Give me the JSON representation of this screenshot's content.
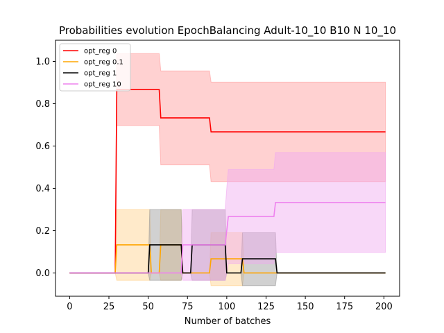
{
  "chart_data": {
    "type": "line",
    "title": "Probabilities evolution EpochBalancing Adult-10_10 B10 N 10_10",
    "xlabel": "Number of batches",
    "ylabel": "",
    "xlim": [
      -9,
      210
    ],
    "ylim": [
      -0.11,
      1.1
    ],
    "xticks": [
      0,
      25,
      50,
      75,
      100,
      125,
      150,
      175,
      200
    ],
    "yticks": [
      0.0,
      0.2,
      0.4,
      0.6,
      0.8,
      1.0
    ],
    "ytick_labels": [
      "0.0",
      "0.2",
      "0.4",
      "0.6",
      "0.8",
      "1.0"
    ],
    "grid": false,
    "legend_position": "top-left",
    "series": [
      {
        "name": "opt_reg 0",
        "color": "#ff0000",
        "band_color": "#ff9999",
        "points": [
          [
            0,
            0.0
          ],
          [
            29,
            0.0
          ],
          [
            30,
            0.867
          ],
          [
            57,
            0.867
          ],
          [
            58,
            0.733
          ],
          [
            89,
            0.733
          ],
          [
            90,
            0.667
          ],
          [
            201,
            0.667
          ]
        ],
        "band": [
          [
            0,
            0,
            0
          ],
          [
            29,
            0,
            0
          ],
          [
            30,
            0.697,
            1.037
          ],
          [
            57,
            0.697,
            1.037
          ],
          [
            58,
            0.511,
            0.955
          ],
          [
            89,
            0.511,
            0.955
          ],
          [
            90,
            0.432,
            0.902
          ],
          [
            201,
            0.432,
            0.902
          ]
        ]
      },
      {
        "name": "opt_reg 0.1",
        "color": "#ffa500",
        "band_color": "#ffd08a",
        "points": [
          [
            0,
            0.0
          ],
          [
            29,
            0.0
          ],
          [
            30,
            0.133
          ],
          [
            51,
            0.133
          ],
          [
            52,
            0.0
          ],
          [
            57,
            0.0
          ],
          [
            58,
            0.133
          ],
          [
            71,
            0.133
          ],
          [
            72,
            0.0
          ],
          [
            89,
            0.0
          ],
          [
            90,
            0.067
          ],
          [
            110,
            0.067
          ],
          [
            111,
            0.0
          ],
          [
            201,
            0.0
          ]
        ],
        "band": [
          [
            0,
            0,
            0
          ],
          [
            29,
            0,
            0
          ],
          [
            30,
            -0.035,
            0.3
          ],
          [
            51,
            -0.035,
            0.3
          ],
          [
            52,
            0,
            0
          ],
          [
            57,
            0,
            0
          ],
          [
            58,
            -0.035,
            0.3
          ],
          [
            71,
            -0.035,
            0.3
          ],
          [
            72,
            0,
            0
          ],
          [
            89,
            0,
            0
          ],
          [
            90,
            -0.06,
            0.19
          ],
          [
            110,
            -0.06,
            0.19
          ],
          [
            111,
            0,
            0
          ],
          [
            201,
            0,
            0
          ]
        ]
      },
      {
        "name": "opt_reg 1",
        "color": "#000000",
        "band_color": "#999999",
        "points": [
          [
            0,
            0.0
          ],
          [
            50,
            0.0
          ],
          [
            51,
            0.133
          ],
          [
            71,
            0.133
          ],
          [
            72,
            0.0
          ],
          [
            77,
            0.0
          ],
          [
            78,
            0.133
          ],
          [
            99,
            0.133
          ],
          [
            100,
            0.0
          ],
          [
            109,
            0.0
          ],
          [
            110,
            0.067
          ],
          [
            131,
            0.067
          ],
          [
            132,
            0.0
          ],
          [
            201,
            0.0
          ]
        ],
        "band": [
          [
            0,
            0,
            0
          ],
          [
            50,
            0,
            0
          ],
          [
            51,
            -0.035,
            0.3
          ],
          [
            71,
            -0.035,
            0.3
          ],
          [
            72,
            0,
            0
          ],
          [
            77,
            0,
            0
          ],
          [
            78,
            -0.035,
            0.3
          ],
          [
            99,
            -0.035,
            0.3
          ],
          [
            100,
            0,
            0
          ],
          [
            109,
            0,
            0
          ],
          [
            110,
            -0.06,
            0.19
          ],
          [
            131,
            -0.06,
            0.19
          ],
          [
            132,
            0,
            0
          ],
          [
            201,
            0,
            0
          ]
        ]
      },
      {
        "name": "opt_reg 10",
        "color": "#ee82ee",
        "band_color": "#f0a8f0",
        "points": [
          [
            0,
            0.0
          ],
          [
            71,
            0.0
          ],
          [
            72,
            0.133
          ],
          [
            99,
            0.133
          ],
          [
            100,
            0.2
          ],
          [
            101,
            0.267
          ],
          [
            130,
            0.267
          ],
          [
            131,
            0.333
          ],
          [
            201,
            0.333
          ]
        ],
        "band": [
          [
            0,
            0,
            0
          ],
          [
            71,
            0,
            0
          ],
          [
            72,
            -0.035,
            0.3
          ],
          [
            99,
            -0.035,
            0.3
          ],
          [
            100,
            0.0,
            0.4
          ],
          [
            101,
            0.045,
            0.489
          ],
          [
            130,
            0.045,
            0.489
          ],
          [
            131,
            0.097,
            0.569
          ],
          [
            201,
            0.097,
            0.569
          ]
        ]
      }
    ]
  }
}
